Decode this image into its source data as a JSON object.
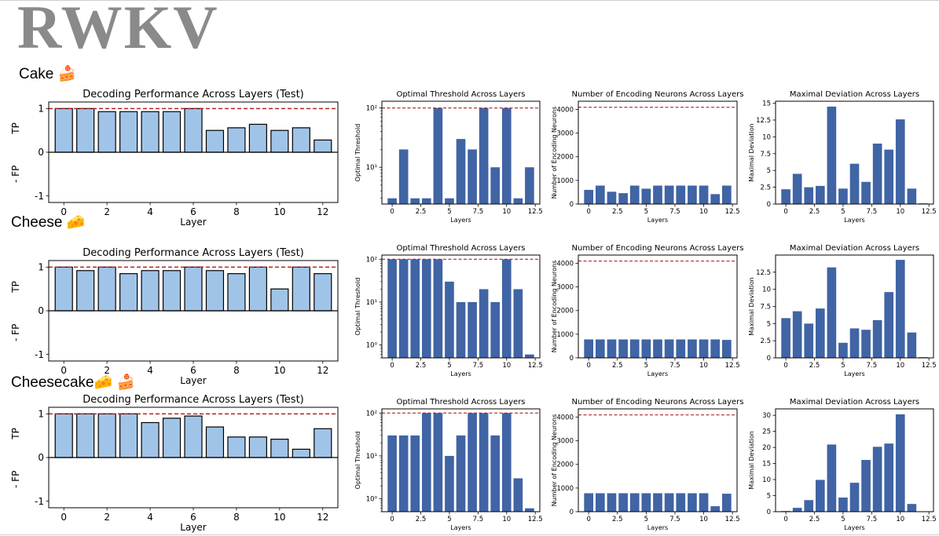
{
  "logo": "RWKV",
  "section_labels": [
    "Cake 🍰",
    "Cheese 🧀",
    "Cheesecake🧀 🍰"
  ],
  "chart_data": [
    {
      "id": "r0c0",
      "type": "bar",
      "title": "Decoding Performance Across Layers (Test)",
      "xlabel": "Layer",
      "ylabel_top": "TP",
      "ylabel_bottom": "- FP",
      "x": [
        0,
        1,
        2,
        3,
        4,
        5,
        6,
        7,
        8,
        9,
        10,
        11,
        12
      ],
      "values": [
        1.0,
        1.0,
        0.93,
        0.93,
        0.93,
        0.93,
        1.0,
        0.5,
        0.56,
        0.64,
        0.5,
        0.56,
        0.28
      ],
      "ylim": [
        -1.15,
        1.15
      ],
      "yticks": [
        -1,
        0,
        1
      ],
      "xticks": [
        0,
        2,
        4,
        6,
        8,
        10,
        12
      ],
      "xlim": [
        -0.7,
        12.7
      ],
      "threshold": 1,
      "bar_color": "#a0c4e8"
    },
    {
      "id": "r0c1",
      "type": "bar",
      "title": "Optimal Threshold Across Layers",
      "xlabel": "Layers",
      "ylabel": "Optimal Threshold",
      "yscale": "log",
      "x": [
        0,
        1,
        2,
        3,
        4,
        5,
        6,
        7,
        8,
        9,
        10,
        11,
        12
      ],
      "values": [
        3,
        20,
        3,
        3,
        100,
        3,
        30,
        20,
        100,
        10,
        100,
        3,
        10
      ],
      "ylim": [
        2.4,
        130
      ],
      "yticks": [
        {
          "v": 10,
          "label": "10¹"
        },
        {
          "v": 100,
          "label": "10²"
        }
      ],
      "xticks": [
        0,
        2.5,
        5,
        7.5,
        10,
        12.5
      ],
      "xlim": [
        -0.9,
        12.9
      ],
      "threshold": 100,
      "bar_color": "#4064a4"
    },
    {
      "id": "r0c2",
      "type": "bar",
      "title": "Number of Encoding Neurons Across Layers",
      "xlabel": "Layers",
      "ylabel": "Number of Encoding Neurons",
      "x": [
        0,
        1,
        2,
        3,
        4,
        5,
        6,
        7,
        8,
        9,
        10,
        11,
        12
      ],
      "values": [
        600,
        780,
        520,
        460,
        780,
        650,
        780,
        780,
        780,
        780,
        780,
        420,
        780
      ],
      "ylim": [
        0,
        4350
      ],
      "yticks": [
        0,
        1000,
        2000,
        3000,
        4000
      ],
      "xticks": [
        0,
        2.5,
        5,
        7.5,
        10,
        12.5
      ],
      "xlim": [
        -0.9,
        12.9
      ],
      "threshold": 4096,
      "bar_color": "#4064a4"
    },
    {
      "id": "r0c3",
      "type": "bar",
      "title": "Maximal Deviation Across Layers",
      "xlabel": "Layers",
      "ylabel": "Maximal Deviation",
      "x": [
        0,
        1,
        2,
        3,
        4,
        5,
        6,
        7,
        8,
        9,
        10,
        11,
        12
      ],
      "values": [
        2.2,
        4.5,
        2.5,
        2.7,
        14.5,
        2.3,
        6.0,
        3.3,
        9.0,
        8.1,
        12.6,
        2.3,
        0.1
      ],
      "ylim": [
        0,
        15.3
      ],
      "yticks": [
        0,
        2.5,
        5,
        7.5,
        10,
        12.5,
        15
      ],
      "xticks": [
        0,
        2.5,
        5,
        7.5,
        10,
        12.5
      ],
      "xlim": [
        -0.9,
        12.9
      ],
      "bar_color": "#4064a4"
    },
    {
      "id": "r1c0",
      "type": "bar",
      "title": "Decoding Performance Across Layers (Test)",
      "xlabel": "Layer",
      "ylabel_top": "TP",
      "ylabel_bottom": "- FP",
      "x": [
        0,
        1,
        2,
        3,
        4,
        5,
        6,
        7,
        8,
        9,
        10,
        11,
        12
      ],
      "values": [
        1.0,
        0.92,
        1.0,
        0.85,
        0.92,
        0.92,
        1.0,
        0.92,
        0.85,
        1.0,
        0.5,
        1.0,
        0.85
      ],
      "ylim": [
        -1.15,
        1.15
      ],
      "yticks": [
        -1,
        0,
        1
      ],
      "xticks": [
        0,
        2,
        4,
        6,
        8,
        10,
        12
      ],
      "xlim": [
        -0.7,
        12.7
      ],
      "threshold": 1,
      "bar_color": "#a0c4e8"
    },
    {
      "id": "r1c1",
      "type": "bar",
      "title": "Optimal Threshold Across Layers",
      "xlabel": "Layers",
      "ylabel": "Optimal Threshold",
      "yscale": "log",
      "x": [
        0,
        1,
        2,
        3,
        4,
        5,
        6,
        7,
        8,
        9,
        10,
        11,
        12
      ],
      "values": [
        100,
        100,
        100,
        100,
        100,
        30,
        10,
        10,
        20,
        10,
        100,
        20,
        0.6
      ],
      "ylim": [
        0.5,
        125
      ],
      "yticks": [
        {
          "v": 1,
          "label": "10⁰"
        },
        {
          "v": 10,
          "label": "10¹"
        },
        {
          "v": 100,
          "label": "10²"
        }
      ],
      "xticks": [
        0,
        2.5,
        5,
        7.5,
        10,
        12.5
      ],
      "xlim": [
        -0.9,
        12.9
      ],
      "threshold": 100,
      "bar_color": "#4064a4"
    },
    {
      "id": "r1c2",
      "type": "bar",
      "title": "Number of Encoding Neurons Across Layers",
      "xlabel": "Layers",
      "ylabel": "Number of Encoding Neurons",
      "x": [
        0,
        1,
        2,
        3,
        4,
        5,
        6,
        7,
        8,
        9,
        10,
        11,
        12
      ],
      "values": [
        780,
        780,
        780,
        780,
        780,
        780,
        780,
        780,
        780,
        780,
        780,
        780,
        760
      ],
      "ylim": [
        0,
        4350
      ],
      "yticks": [
        0,
        1000,
        2000,
        3000,
        4000
      ],
      "xticks": [
        0,
        2.5,
        5,
        7.5,
        10,
        12.5
      ],
      "xlim": [
        -0.9,
        12.9
      ],
      "threshold": 4096,
      "bar_color": "#4064a4"
    },
    {
      "id": "r1c3",
      "type": "bar",
      "title": "Maximal Deviation Across Layers",
      "xlabel": "Layers",
      "ylabel": "Maximal Deviation",
      "x": [
        0,
        1,
        2,
        3,
        4,
        5,
        6,
        7,
        8,
        9,
        10,
        11,
        12
      ],
      "values": [
        5.8,
        6.8,
        5.0,
        7.2,
        13.2,
        2.2,
        4.3,
        4.1,
        5.5,
        9.6,
        14.3,
        3.7,
        0.1
      ],
      "ylim": [
        0,
        15.0
      ],
      "yticks": [
        0,
        2.5,
        5,
        7.5,
        10,
        12.5
      ],
      "xticks": [
        0,
        2.5,
        5,
        7.5,
        10,
        12.5
      ],
      "xlim": [
        -0.9,
        12.9
      ],
      "bar_color": "#4064a4"
    },
    {
      "id": "r2c0",
      "type": "bar",
      "title": "Decoding Performance Across Layers (Test)",
      "xlabel": "Layer",
      "ylabel_top": "TP",
      "ylabel_bottom": "- FP",
      "x": [
        0,
        1,
        2,
        3,
        4,
        5,
        6,
        7,
        8,
        9,
        10,
        11,
        12
      ],
      "values": [
        1.0,
        1.0,
        1.0,
        1.0,
        0.8,
        0.9,
        0.95,
        0.7,
        0.47,
        0.47,
        0.42,
        0.19,
        0.66
      ],
      "ylim": [
        -1.15,
        1.15
      ],
      "yticks": [
        -1,
        0,
        1
      ],
      "xticks": [
        0,
        2,
        4,
        6,
        8,
        10,
        12
      ],
      "xlim": [
        -0.7,
        12.7
      ],
      "threshold": 1,
      "bar_color": "#a0c4e8"
    },
    {
      "id": "r2c1",
      "type": "bar",
      "title": "Optimal Threshold Across Layers",
      "xlabel": "Layers",
      "ylabel": "Optimal Threshold",
      "yscale": "log",
      "x": [
        0,
        1,
        2,
        3,
        4,
        5,
        6,
        7,
        8,
        9,
        10,
        11,
        12
      ],
      "values": [
        30,
        30,
        30,
        100,
        100,
        10,
        30,
        100,
        100,
        30,
        100,
        3,
        0.6
      ],
      "ylim": [
        0.5,
        125
      ],
      "yticks": [
        {
          "v": 1,
          "label": "10⁰"
        },
        {
          "v": 10,
          "label": "10¹"
        },
        {
          "v": 100,
          "label": "10²"
        }
      ],
      "xticks": [
        0,
        2.5,
        5,
        7.5,
        10,
        12.5
      ],
      "xlim": [
        -0.9,
        12.9
      ],
      "threshold": 100,
      "bar_color": "#4064a4"
    },
    {
      "id": "r2c2",
      "type": "bar",
      "title": "Number of Encoding Neurons Across Layers",
      "xlabel": "Layers",
      "ylabel": "Number of Encoding Neurons",
      "x": [
        0,
        1,
        2,
        3,
        4,
        5,
        6,
        7,
        8,
        9,
        10,
        11,
        12
      ],
      "values": [
        780,
        780,
        780,
        780,
        780,
        780,
        780,
        780,
        780,
        780,
        780,
        230,
        760
      ],
      "ylim": [
        0,
        4350
      ],
      "yticks": [
        0,
        1000,
        2000,
        3000,
        4000
      ],
      "xticks": [
        0,
        2.5,
        5,
        7.5,
        10,
        12.5
      ],
      "xlim": [
        -0.9,
        12.9
      ],
      "threshold": 4096,
      "bar_color": "#4064a4"
    },
    {
      "id": "r2c3",
      "type": "bar",
      "title": "Maximal Deviation Across Layers",
      "xlabel": "Layers",
      "ylabel": "Maximal Deviation",
      "x": [
        0,
        1,
        2,
        3,
        4,
        5,
        6,
        7,
        8,
        9,
        10,
        11,
        12
      ],
      "values": [
        0.2,
        1.2,
        3.6,
        9.9,
        20.9,
        4.4,
        9.0,
        16.1,
        20.2,
        21.2,
        30.3,
        2.4,
        0.1
      ],
      "ylim": [
        0,
        32
      ],
      "yticks": [
        0,
        5,
        10,
        15,
        20,
        25,
        30
      ],
      "xticks": [
        0,
        2.5,
        5,
        7.5,
        10,
        12.5
      ],
      "xlim": [
        -0.9,
        12.9
      ],
      "bar_color": "#4064a4"
    }
  ]
}
